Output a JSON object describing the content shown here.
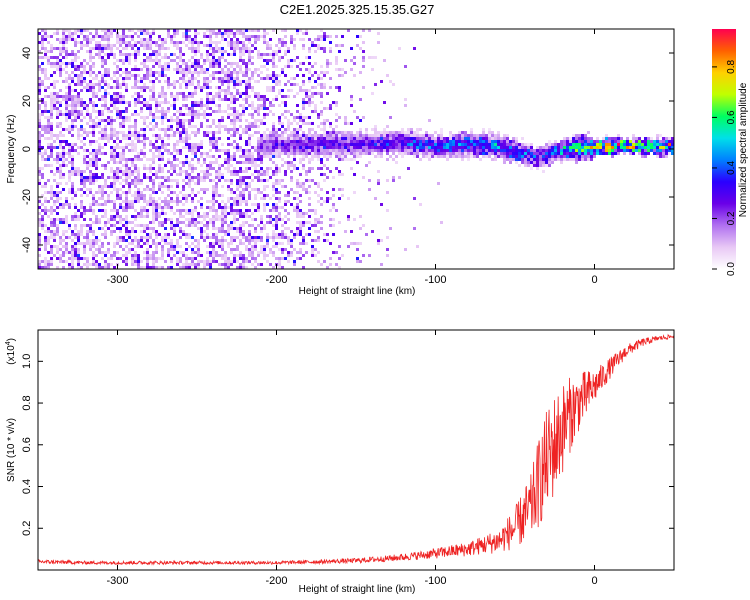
{
  "title": "C2E1.2025.325.15.35.G27",
  "chart_data": [
    {
      "type": "heatmap",
      "name": "spectrogram",
      "xlabel": "Height of straight line (km)",
      "ylabel": "Frequency (Hz)",
      "xlim": [
        -350,
        50
      ],
      "ylim": [
        -50,
        50
      ],
      "xticks": [
        -300,
        -200,
        -100,
        0
      ],
      "yticks": [
        -40,
        -20,
        0,
        20,
        40
      ],
      "xtick_labels": [
        "-300",
        "-200",
        "-100",
        "0"
      ],
      "ytick_labels": [
        "-40",
        "-20",
        "0",
        "20",
        "40"
      ],
      "colorbar": {
        "label": "Normalized spectral amplitude",
        "range": [
          0,
          0.95
        ],
        "ticks": [
          0.0,
          0.2,
          0.4,
          0.6,
          0.8
        ],
        "tick_labels": [
          "0.0",
          "0.2",
          "0.4",
          "0.6",
          "0.8"
        ],
        "colors": [
          "#ffffff",
          "#e8c8f5",
          "#b070f0",
          "#6a00e8",
          "#2a00ff",
          "#0080ff",
          "#00e0e8",
          "#00ff60",
          "#c0ff00",
          "#ffd000",
          "#ff6000",
          "#ff0050"
        ]
      },
      "signal_track": {
        "description_points_x": [
          -210,
          -180,
          -150,
          -120,
          -100,
          -80,
          -60,
          -45,
          -35,
          -25,
          -10,
          0,
          20,
          50
        ],
        "center_freq": [
          1,
          2,
          2,
          3,
          1,
          2,
          1,
          -2,
          -4,
          -1,
          0,
          1,
          1,
          1
        ],
        "amplitude": [
          0.25,
          0.35,
          0.35,
          0.4,
          0.45,
          0.5,
          0.5,
          0.45,
          0.4,
          0.5,
          0.7,
          0.8,
          0.85,
          0.9
        ]
      },
      "noise_region": {
        "x_range": [
          -350,
          -120
        ],
        "density_end_x": -160
      }
    },
    {
      "type": "line",
      "name": "snr",
      "xlabel": "Height of straight line (km)",
      "ylabel": "SNR (10 * v/v)",
      "scale_label": "(x10",
      "scale_exponent": "4",
      "scale_close": ")",
      "xlim": [
        -350,
        50
      ],
      "ylim": [
        0,
        1.15
      ],
      "xticks": [
        -300,
        -200,
        -100,
        0
      ],
      "yticks": [
        0.2,
        0.4,
        0.6,
        0.8,
        1.0
      ],
      "xtick_labels": [
        "-300",
        "-200",
        "-100",
        "0"
      ],
      "ytick_labels": [
        "0.2",
        "0.4",
        "0.6",
        "0.8",
        "1.0"
      ],
      "color": "#ee2222",
      "x": [
        -350,
        -320,
        -290,
        -260,
        -230,
        -200,
        -170,
        -150,
        -130,
        -110,
        -100,
        -90,
        -80,
        -70,
        -60,
        -55,
        -50,
        -45,
        -40,
        -35,
        -30,
        -25,
        -20,
        -15,
        -10,
        -5,
        0,
        10,
        20,
        30,
        40,
        50
      ],
      "y": [
        0.04,
        0.035,
        0.035,
        0.035,
        0.035,
        0.035,
        0.04,
        0.045,
        0.055,
        0.07,
        0.08,
        0.09,
        0.1,
        0.12,
        0.14,
        0.17,
        0.2,
        0.25,
        0.3,
        0.42,
        0.52,
        0.6,
        0.68,
        0.75,
        0.8,
        0.84,
        0.88,
        0.97,
        1.05,
        1.09,
        1.11,
        1.12
      ],
      "noise_amp": [
        0.01,
        0.008,
        0.008,
        0.008,
        0.008,
        0.008,
        0.01,
        0.012,
        0.015,
        0.02,
        0.025,
        0.03,
        0.035,
        0.045,
        0.06,
        0.08,
        0.1,
        0.13,
        0.16,
        0.22,
        0.25,
        0.25,
        0.22,
        0.18,
        0.14,
        0.12,
        0.08,
        0.05,
        0.03,
        0.02,
        0.012,
        0.01
      ]
    }
  ]
}
